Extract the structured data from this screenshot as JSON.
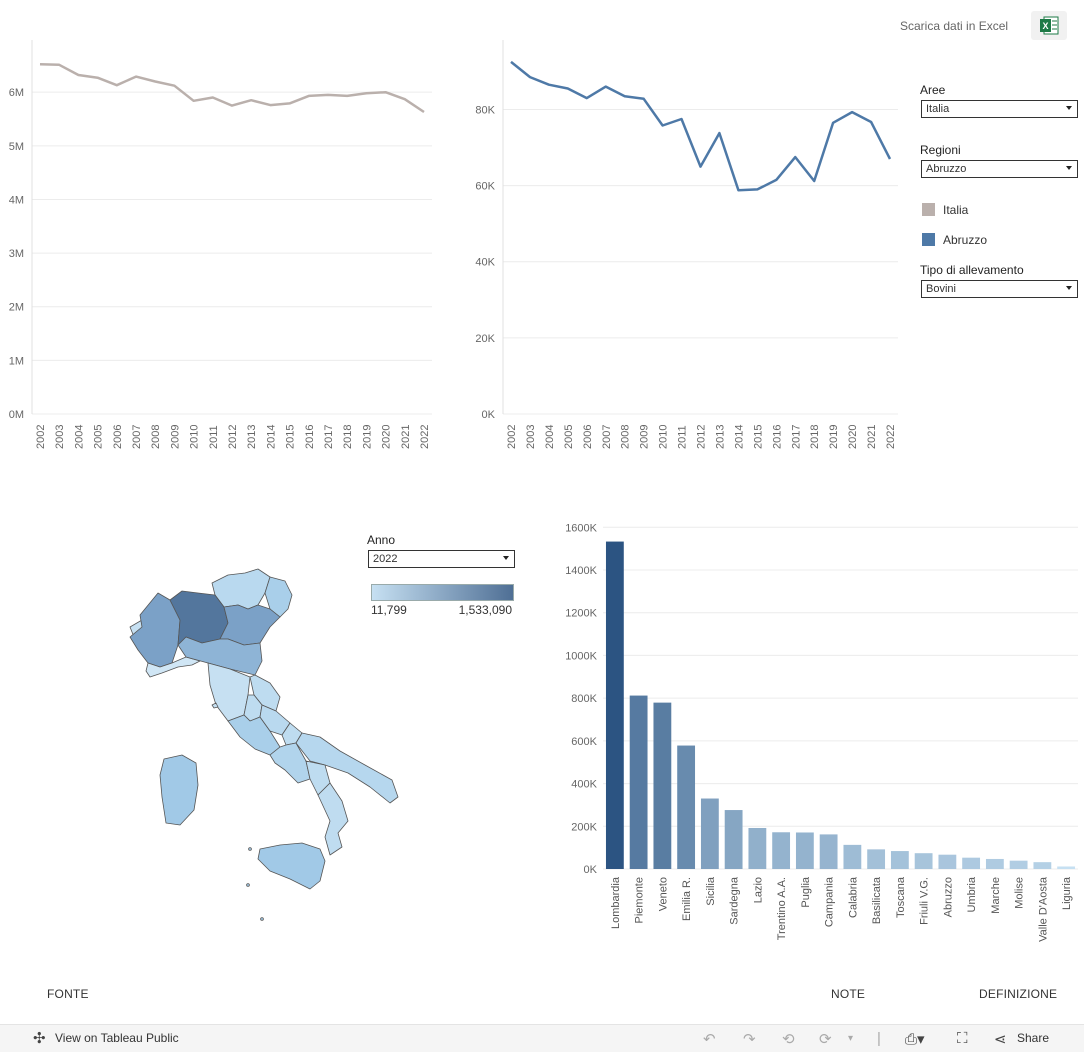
{
  "header": {
    "excel_link": "Scarica dati in Excel",
    "excel_icon": "excel-icon"
  },
  "controls": {
    "aree": {
      "label": "Aree",
      "value": "Italia"
    },
    "regioni": {
      "label": "Regioni",
      "value": "Abruzzo"
    },
    "tipo": {
      "label": "Tipo di allevamento",
      "value": "Bovini"
    },
    "anno": {
      "label": "Anno",
      "value": "2022"
    }
  },
  "legend": [
    {
      "name": "Italia",
      "color": "#bab0ac"
    },
    {
      "name": "Abruzzo",
      "color": "#4e79a7"
    }
  ],
  "color_scale": {
    "min_label": "11,799",
    "max_label": "1,533,090",
    "low_color": "#c6e0f2",
    "high_color": "#4f6f95"
  },
  "map": {
    "shading_color": "#9ec9e6",
    "dark_color": "#53769d"
  },
  "chart_data": [
    {
      "type": "line",
      "series": [
        {
          "name": "Italia",
          "color": "#bab0ac",
          "values": [
            6.52,
            6.51,
            6.32,
            6.27,
            6.13,
            6.29,
            6.2,
            6.12,
            5.84,
            5.9,
            5.75,
            5.85,
            5.76,
            5.79,
            5.93,
            5.95,
            5.93,
            5.98,
            6.0,
            5.87,
            5.63
          ]
        }
      ],
      "x": [
        "2002",
        "2003",
        "2004",
        "2005",
        "2006",
        "2007",
        "2008",
        "2009",
        "2010",
        "2011",
        "2012",
        "2013",
        "2014",
        "2015",
        "2016",
        "2017",
        "2018",
        "2019",
        "2020",
        "2021",
        "2022"
      ],
      "ylim": [
        0,
        6.6
      ],
      "yticks": [
        "0M",
        "1M",
        "2M",
        "3M",
        "4M",
        "5M",
        "6M"
      ],
      "grid": true
    },
    {
      "type": "line",
      "series": [
        {
          "name": "Abruzzo",
          "color": "#4e79a7",
          "values": [
            92.5,
            88.5,
            86.5,
            85.5,
            83.0,
            86.0,
            83.5,
            82.8,
            75.8,
            77.5,
            65.0,
            73.8,
            58.8,
            59.0,
            61.5,
            67.5,
            61.2,
            76.5,
            79.3,
            76.7,
            67.0
          ]
        }
      ],
      "x": [
        "2002",
        "2003",
        "2004",
        "2005",
        "2006",
        "2007",
        "2008",
        "2009",
        "2010",
        "2011",
        "2012",
        "2013",
        "2014",
        "2015",
        "2016",
        "2017",
        "2018",
        "2019",
        "2020",
        "2021",
        "2022"
      ],
      "ylim": [
        0,
        93
      ],
      "yticks": [
        "0K",
        "20K",
        "40K",
        "60K",
        "80K"
      ],
      "grid": true
    },
    {
      "type": "bar",
      "categories": [
        "Lombardia",
        "Piemonte",
        "Veneto",
        "Emilia R.",
        "Sicilia",
        "Sardegna",
        "Lazio",
        "Trentino A.A.",
        "Puglia",
        "Campania",
        "Calabria",
        "Basilicata",
        "Toscana",
        "Friuli V.G.",
        "Abruzzo",
        "Umbria",
        "Marche",
        "Molise",
        "Valle D'Aosta",
        "Liguria"
      ],
      "values": [
        1533090,
        812000,
        779000,
        578000,
        330000,
        276000,
        192000,
        172000,
        171000,
        162000,
        113000,
        92000,
        84000,
        74000,
        67000,
        53000,
        47000,
        39000,
        32000,
        11799
      ],
      "ylim": [
        0,
        1620000
      ],
      "yticks": [
        "0K",
        "200K",
        "400K",
        "600K",
        "800K",
        "1000K",
        "1200K",
        "1400K",
        "1600K"
      ],
      "grid": true
    }
  ],
  "footer": {
    "fonte": "FONTE",
    "note": "NOTE",
    "definizione": "DEFINIZIONE"
  },
  "toolbar": {
    "view_label": "View on Tableau Public",
    "share_label": "Share"
  }
}
